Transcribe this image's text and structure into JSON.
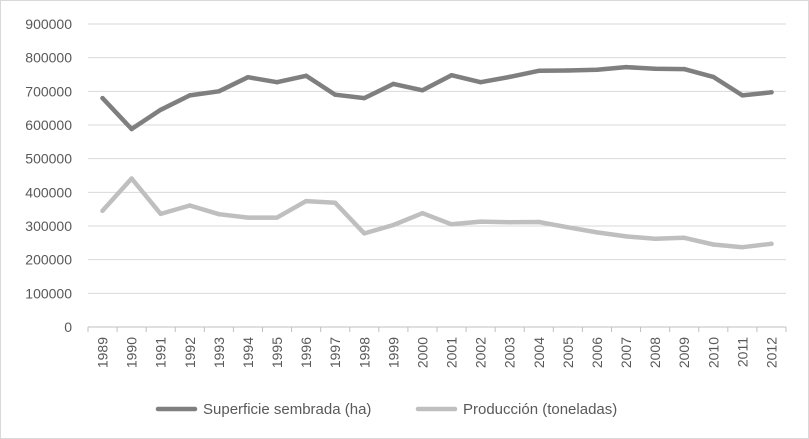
{
  "chart_data": {
    "type": "line",
    "title": "",
    "xlabel": "",
    "ylabel": "",
    "ylim": [
      0,
      900000
    ],
    "y_ticks": [
      "900000",
      "800000",
      "700000",
      "600000",
      "500000",
      "400000",
      "300000",
      "200000",
      "100000",
      "0"
    ],
    "y_tick_values": [
      900000,
      800000,
      700000,
      600000,
      500000,
      400000,
      300000,
      200000,
      100000,
      0
    ],
    "grid": true,
    "legend_position": "bottom",
    "categories": [
      "1989",
      "1990",
      "1991",
      "1992",
      "1993",
      "1994",
      "1995",
      "1996",
      "1997",
      "1998",
      "1999",
      "2000",
      "2001",
      "2002",
      "2003",
      "2004",
      "2005",
      "2006",
      "2007",
      "2008",
      "2009",
      "2010",
      "2011",
      "2012"
    ],
    "series": [
      {
        "name": "Superficie sembrada (ha)",
        "color": "#7f7f7f",
        "values": [
          680000,
          588000,
          645000,
          688000,
          700000,
          742000,
          727000,
          746000,
          690000,
          680000,
          722000,
          703000,
          748000,
          727000,
          743000,
          761000,
          762000,
          764000,
          772000,
          767000,
          766000,
          743000,
          688000,
          697000
        ]
      },
      {
        "name": "Producción (toneladas)",
        "color": "#bfbfbf",
        "values": [
          345000,
          441000,
          336000,
          361000,
          335000,
          325000,
          325000,
          374000,
          369000,
          278000,
          303000,
          338000,
          305000,
          313000,
          311000,
          312000,
          296000,
          281000,
          269000,
          262000,
          265000,
          245000,
          237000,
          247000
        ]
      }
    ]
  }
}
